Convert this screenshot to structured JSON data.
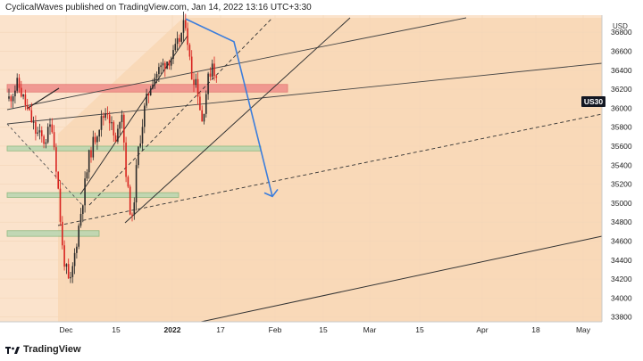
{
  "header": {
    "publisher": "CyclicalWaves published on TradingView.com, Jan 14, 2022 13:16 UTC+3:30"
  },
  "brand": {
    "name": "TradingView",
    "icon": "tradingview-logo-icon"
  },
  "symbol_badge": "US30",
  "currency": "USD",
  "colors": {
    "bg": "#fbe3cc",
    "zone": "#f9d2a8",
    "bull": "#2a2a2a",
    "bear": "#d8231f",
    "resistance": "#ef8d8a",
    "support": "#b8d6b0",
    "arrow": "#3b7ddc"
  },
  "chart_data": {
    "type": "candlestick",
    "x_ticks": [
      "Dec",
      "15",
      "2022",
      "17",
      "Feb",
      "15",
      "Mar",
      "15",
      "Apr",
      "18",
      "May"
    ],
    "y_ticks": [
      33800,
      34000,
      34200,
      34400,
      34600,
      34800,
      35000,
      35200,
      35400,
      35600,
      35800,
      36000,
      36200,
      36400,
      36600,
      36800
    ],
    "ylim": [
      33750,
      36980
    ],
    "last_price_label": "US30",
    "projection_points": [
      36940,
      36700,
      35070
    ],
    "zones": [
      {
        "name": "resistance",
        "from": 36170,
        "to": 36250
      },
      {
        "name": "support-1",
        "from": 35550,
        "to": 35600
      },
      {
        "name": "support-2",
        "from": 35060,
        "to": 35110
      },
      {
        "name": "support-3",
        "from": 34650,
        "to": 34710
      }
    ]
  }
}
